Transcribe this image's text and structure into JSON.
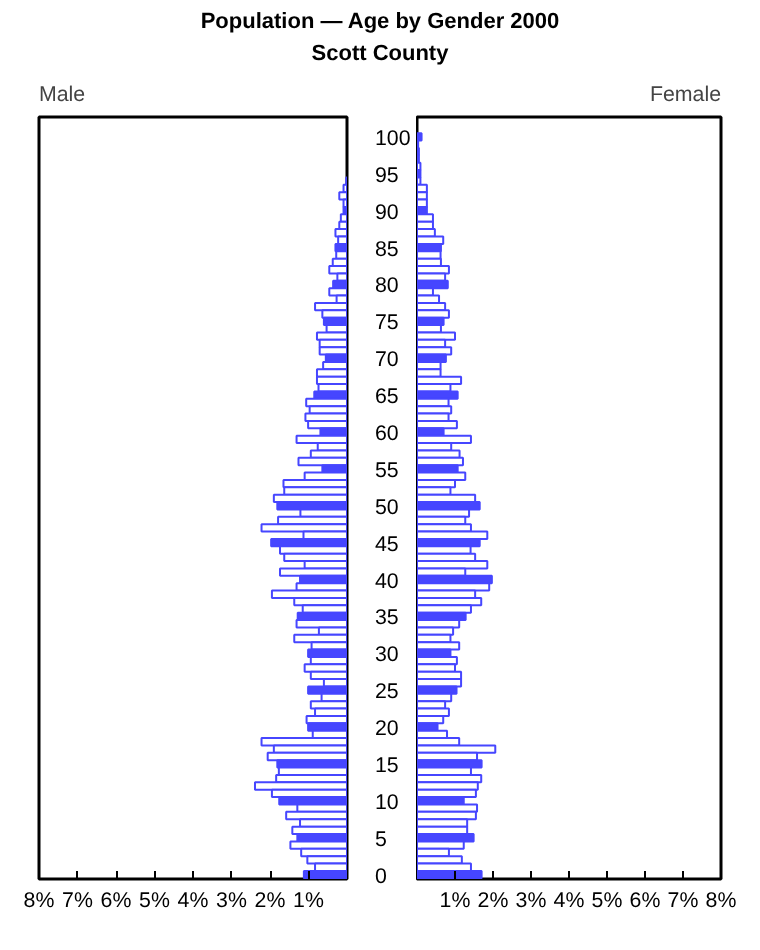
{
  "chart_data": [
    {
      "type": "bar",
      "orientation": "horizontal",
      "title": "Population — Age by Gender 2000",
      "subtitle": "Scott County",
      "categories": [
        "100",
        null,
        null,
        null,
        null,
        "95",
        null,
        null,
        null,
        null,
        "90",
        null,
        null,
        null,
        null,
        "85",
        null,
        null,
        null,
        null,
        "80",
        null,
        null,
        null,
        null,
        "75",
        null,
        null,
        null,
        null,
        "70",
        null,
        null,
        null,
        null,
        "65",
        null,
        null,
        null,
        null,
        "60",
        null,
        null,
        null,
        null,
        "55",
        null,
        null,
        null,
        null,
        "50",
        null,
        null,
        null,
        null,
        "45",
        null,
        null,
        null,
        null,
        "40",
        null,
        null,
        null,
        null,
        "35",
        null,
        null,
        null,
        null,
        "30",
        null,
        null,
        null,
        null,
        "25",
        null,
        null,
        null,
        null,
        "20",
        null,
        null,
        null,
        null,
        "15",
        null,
        null,
        null,
        null,
        "10",
        null,
        null,
        null,
        null,
        "5",
        null,
        null,
        null,
        null,
        "0"
      ],
      "series": [
        {
          "name": "Male",
          "color": "#4646ff",
          "colors": [
            "#4646ff",
            "#ffffff",
            "#ffffff",
            "#ffffff",
            "#ffffff",
            "#4646ff",
            "#ffffff",
            "#ffffff",
            "#ffffff",
            "#ffffff",
            "#4646ff",
            "#ffffff",
            "#ffffff",
            "#ffffff",
            "#ffffff",
            "#4646ff",
            "#ffffff",
            "#ffffff",
            "#ffffff",
            "#ffffff",
            "#4646ff",
            "#ffffff",
            "#ffffff",
            "#ffffff",
            "#ffffff",
            "#4646ff",
            "#ffffff",
            "#ffffff",
            "#ffffff",
            "#ffffff",
            "#4646ff",
            "#ffffff",
            "#ffffff",
            "#ffffff",
            "#ffffff",
            "#4646ff",
            "#ffffff",
            "#ffffff",
            "#ffffff",
            "#ffffff",
            "#4646ff",
            "#ffffff",
            "#ffffff",
            "#ffffff",
            "#ffffff",
            "#4646ff",
            "#ffffff",
            "#ffffff",
            "#ffffff",
            "#ffffff",
            "#4646ff",
            "#ffffff",
            "#ffffff",
            "#ffffff",
            "#ffffff",
            "#4646ff",
            "#ffffff",
            "#ffffff",
            "#ffffff",
            "#ffffff",
            "#4646ff",
            "#ffffff",
            "#ffffff",
            "#ffffff",
            "#ffffff",
            "#4646ff",
            "#ffffff",
            "#ffffff",
            "#ffffff",
            "#ffffff",
            "#4646ff",
            "#ffffff",
            "#ffffff",
            "#ffffff",
            "#ffffff",
            "#4646ff",
            "#ffffff",
            "#ffffff",
            "#ffffff",
            "#ffffff",
            "#4646ff",
            "#ffffff",
            "#ffffff",
            "#ffffff",
            "#ffffff",
            "#4646ff",
            "#ffffff",
            "#ffffff",
            "#ffffff",
            "#ffffff",
            "#4646ff",
            "#ffffff",
            "#ffffff",
            "#ffffff",
            "#ffffff",
            "#4646ff",
            "#ffffff",
            "#ffffff",
            "#ffffff",
            "#ffffff",
            "#4646ff"
          ],
          "values": [
            null,
            null,
            null,
            null,
            null,
            null,
            0.02,
            0.09,
            0.2,
            0.09,
            0.09,
            0.16,
            0.2,
            0.3,
            0.23,
            0.3,
            0.28,
            0.37,
            0.46,
            0.25,
            0.36,
            0.46,
            0.27,
            0.83,
            0.64,
            0.6,
            0.53,
            0.78,
            0.71,
            0.71,
            0.55,
            0.62,
            0.78,
            0.78,
            0.74,
            0.85,
            1.06,
            0.97,
            1.08,
            1.01,
            0.69,
            1.31,
            0.76,
            0.94,
            1.26,
            0.64,
            1.1,
            1.65,
            1.63,
            1.9,
            1.81,
            1.21,
            1.79,
            2.22,
            1.13,
            1.97,
            1.74,
            1.63,
            1.1,
            1.74,
            1.22,
            1.31,
            1.95,
            1.37,
            1.15,
            1.28,
            1.31,
            0.73,
            1.37,
            0.92,
            1.01,
            0.94,
            1.1,
            0.94,
            0.6,
            1.01,
            0.66,
            0.94,
            0.83,
            1.05,
            1.01,
            0.89,
            2.22,
            1.9,
            2.06,
            1.81,
            1.77,
            1.84,
            2.39,
            1.95,
            1.76,
            1.29,
            1.58,
            1.22,
            1.42,
            1.29,
            1.47,
            1.19,
            1.03,
            0.83,
            1.12
          ]
        }
      ],
      "xlim": [
        8,
        0
      ],
      "xticks": [
        {
          "value": 8,
          "label": "8%"
        },
        {
          "value": 7,
          "label": "7%"
        },
        {
          "value": 6,
          "label": "6%"
        },
        {
          "value": 5,
          "label": "5%"
        },
        {
          "value": 4,
          "label": "4%"
        },
        {
          "value": 3,
          "label": "3%"
        },
        {
          "value": 2,
          "label": "2%"
        },
        {
          "value": 1,
          "label": "1%"
        }
      ],
      "grid": false,
      "legend": false
    },
    {
      "type": "bar",
      "orientation": "horizontal",
      "categories": [
        "100",
        null,
        null,
        null,
        null,
        "95",
        null,
        null,
        null,
        null,
        "90",
        null,
        null,
        null,
        null,
        "85",
        null,
        null,
        null,
        null,
        "80",
        null,
        null,
        null,
        null,
        "75",
        null,
        null,
        null,
        null,
        "70",
        null,
        null,
        null,
        null,
        "65",
        null,
        null,
        null,
        null,
        "60",
        null,
        null,
        null,
        null,
        "55",
        null,
        null,
        null,
        null,
        "50",
        null,
        null,
        null,
        null,
        "45",
        null,
        null,
        null,
        null,
        "40",
        null,
        null,
        null,
        null,
        "35",
        null,
        null,
        null,
        null,
        "30",
        null,
        null,
        null,
        null,
        "25",
        null,
        null,
        null,
        null,
        "20",
        null,
        null,
        null,
        null,
        "15",
        null,
        null,
        null,
        null,
        "10",
        null,
        null,
        null,
        null,
        "5",
        null,
        null,
        null,
        null,
        "0"
      ],
      "series": [
        {
          "name": "Female",
          "color": "#4646ff",
          "colors": [
            "#4646ff",
            "#ffffff",
            "#ffffff",
            "#ffffff",
            "#ffffff",
            "#4646ff",
            "#ffffff",
            "#ffffff",
            "#ffffff",
            "#ffffff",
            "#4646ff",
            "#ffffff",
            "#ffffff",
            "#ffffff",
            "#ffffff",
            "#4646ff",
            "#ffffff",
            "#ffffff",
            "#ffffff",
            "#ffffff",
            "#4646ff",
            "#ffffff",
            "#ffffff",
            "#ffffff",
            "#ffffff",
            "#4646ff",
            "#ffffff",
            "#ffffff",
            "#ffffff",
            "#ffffff",
            "#4646ff",
            "#ffffff",
            "#ffffff",
            "#ffffff",
            "#ffffff",
            "#4646ff",
            "#ffffff",
            "#ffffff",
            "#ffffff",
            "#ffffff",
            "#4646ff",
            "#ffffff",
            "#ffffff",
            "#ffffff",
            "#ffffff",
            "#4646ff",
            "#ffffff",
            "#ffffff",
            "#ffffff",
            "#ffffff",
            "#4646ff",
            "#ffffff",
            "#ffffff",
            "#ffffff",
            "#ffffff",
            "#4646ff",
            "#ffffff",
            "#ffffff",
            "#ffffff",
            "#ffffff",
            "#4646ff",
            "#ffffff",
            "#ffffff",
            "#ffffff",
            "#ffffff",
            "#4646ff",
            "#ffffff",
            "#ffffff",
            "#ffffff",
            "#ffffff",
            "#4646ff",
            "#ffffff",
            "#ffffff",
            "#ffffff",
            "#ffffff",
            "#4646ff",
            "#ffffff",
            "#ffffff",
            "#ffffff",
            "#ffffff",
            "#4646ff",
            "#ffffff",
            "#ffffff",
            "#ffffff",
            "#ffffff",
            "#4646ff",
            "#ffffff",
            "#ffffff",
            "#ffffff",
            "#ffffff",
            "#4646ff",
            "#ffffff",
            "#ffffff",
            "#ffffff",
            "#ffffff",
            "#4646ff",
            "#ffffff",
            "#ffffff",
            "#ffffff",
            "#ffffff",
            "#4646ff"
          ],
          "values": [
            0.12,
            0.03,
            0.05,
            0.05,
            0.09,
            0.09,
            0.09,
            0.26,
            0.26,
            0.26,
            0.26,
            0.42,
            0.42,
            0.47,
            0.69,
            0.63,
            0.62,
            0.63,
            0.84,
            0.74,
            0.81,
            0.42,
            0.58,
            0.74,
            0.84,
            0.7,
            0.63,
            1.0,
            0.74,
            0.9,
            0.76,
            0.62,
            0.62,
            1.16,
            0.88,
            1.07,
            0.83,
            0.9,
            0.83,
            1.05,
            0.7,
            1.42,
            0.9,
            1.12,
            1.21,
            1.07,
            1.27,
            1.0,
            0.88,
            1.53,
            1.65,
            1.37,
            1.27,
            1.42,
            1.85,
            1.65,
            1.41,
            1.53,
            1.85,
            1.27,
            1.97,
            1.9,
            1.53,
            1.69,
            1.42,
            1.28,
            1.11,
            0.95,
            0.88,
            1.11,
            0.88,
            1.05,
            1.0,
            1.16,
            1.16,
            1.04,
            0.9,
            0.74,
            0.84,
            0.69,
            0.54,
            0.79,
            1.11,
            2.06,
            1.58,
            1.7,
            1.42,
            1.69,
            1.6,
            1.55,
            1.23,
            1.58,
            1.55,
            1.32,
            1.32,
            1.49,
            1.23,
            0.84,
            1.18,
            1.42,
            1.7
          ]
        }
      ],
      "xlim": [
        0,
        8
      ],
      "xticks": [
        {
          "value": 1,
          "label": "1%"
        },
        {
          "value": 2,
          "label": "2%"
        },
        {
          "value": 3,
          "label": "3%"
        },
        {
          "value": 4,
          "label": "4%"
        },
        {
          "value": 5,
          "label": "5%"
        },
        {
          "value": 6,
          "label": "6%"
        },
        {
          "value": 7,
          "label": "7%"
        },
        {
          "value": 8,
          "label": "8%"
        }
      ],
      "tick_labels": "x",
      "grid": false,
      "legend": false
    }
  ]
}
